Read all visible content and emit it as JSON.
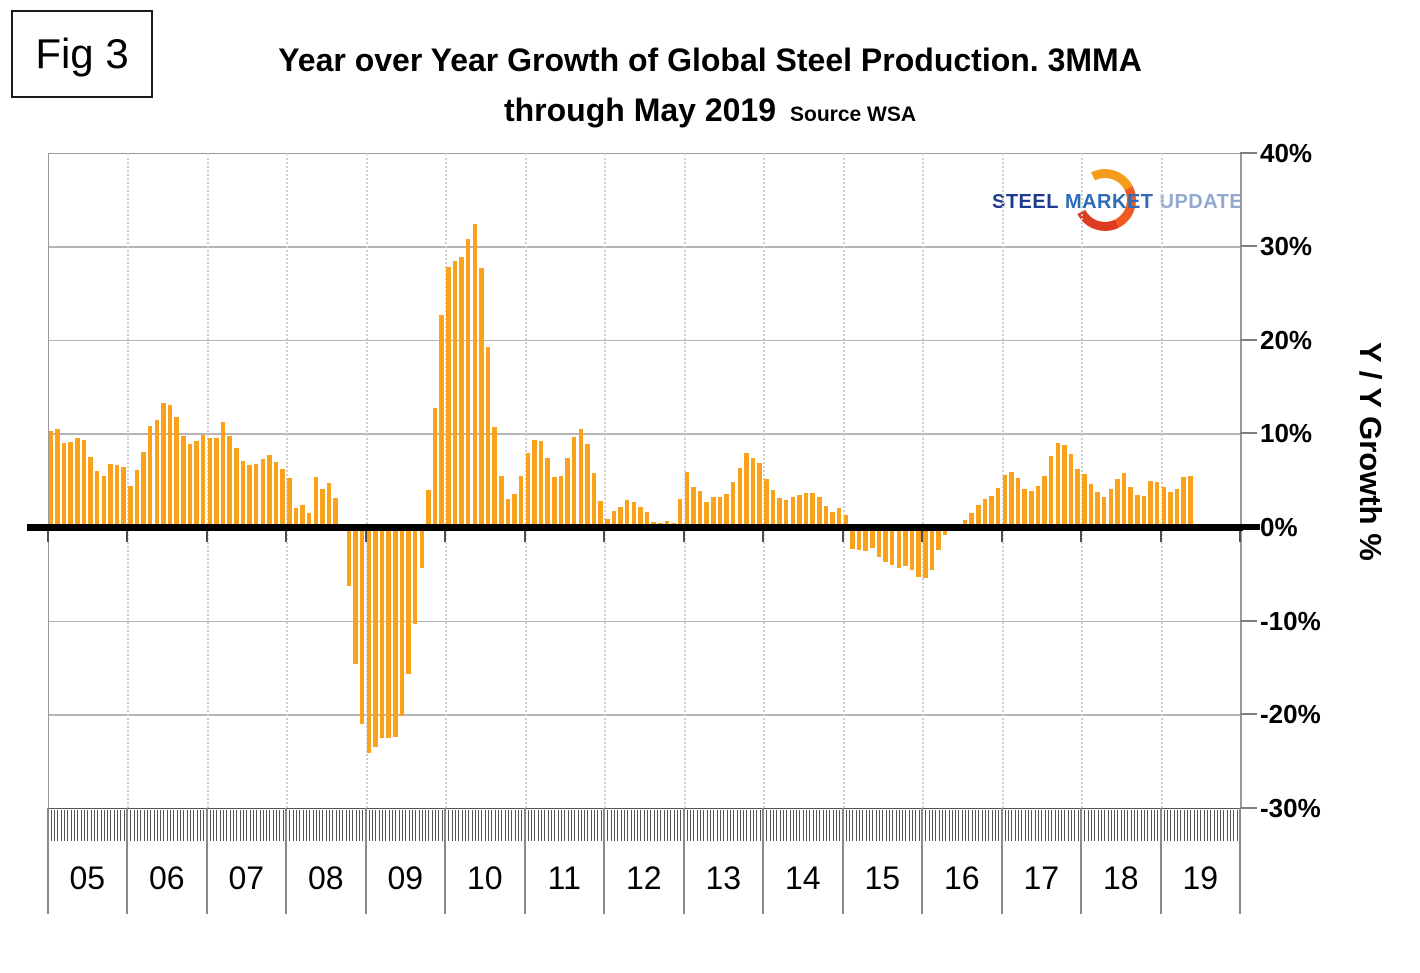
{
  "figure_label": "Fig 3",
  "title_line1": "Year over Year Growth of Global Steel Production. 3MMA",
  "title_line2": "through May 2019",
  "source_label": "Source WSA",
  "logo": {
    "word1": "STEEL",
    "word2": "MARKET",
    "word3": "UPDATE",
    "crescent_color_top": "#f69c1d",
    "crescent_color_bottom": "#dd3b22",
    "word1_color": "#1d3c8f",
    "word2_color": "#2e6cb5",
    "word3_color": "#93a9ce"
  },
  "y_axis": {
    "title": "Y / Y Growth %",
    "ticks": [
      "40%",
      "30%",
      "20%",
      "10%",
      "0%",
      "-10%",
      "-20%",
      "-30%"
    ]
  },
  "chart_data": {
    "type": "bar",
    "title": "Year over Year Growth of Global Steel Production. 3MMA through May 2019",
    "unit": "percent",
    "ylabel": "Y / Y Growth %",
    "ylim": [
      -30,
      40
    ],
    "gridline_step": 10,
    "grid": true,
    "legend": false,
    "bar_color": "#faa21b",
    "zero_line_color": "#000000",
    "x_frequency": "monthly",
    "years": [
      {
        "label": "05",
        "values": [
          10.3,
          10.5,
          9.0,
          9.1,
          9.5,
          9.3,
          7.5,
          6.0,
          5.5,
          6.7,
          6.6,
          6.4
        ]
      },
      {
        "label": "06",
        "values": [
          4.4,
          6.1,
          8.0,
          10.8,
          11.4,
          13.2,
          13.0,
          11.7,
          9.7,
          8.9,
          9.2,
          9.8
        ]
      },
      {
        "label": "07",
        "values": [
          9.5,
          9.5,
          11.2,
          9.7,
          8.4,
          7.1,
          6.6,
          6.7,
          7.3,
          7.7,
          6.9,
          6.2
        ]
      },
      {
        "label": "08",
        "values": [
          5.2,
          2.0,
          2.3,
          1.5,
          5.3,
          4.1,
          4.7,
          3.1,
          0.1,
          -6.3,
          -14.6,
          -21.1
        ]
      },
      {
        "label": "09",
        "values": [
          -24.1,
          -23.5,
          -22.5,
          -22.5,
          -22.4,
          -20.2,
          -15.7,
          -10.4,
          -4.4,
          4.0,
          12.7,
          22.6
        ]
      },
      {
        "label": "10",
        "values": [
          27.8,
          28.4,
          28.8,
          30.8,
          32.4,
          27.7,
          19.2,
          10.7,
          5.4,
          3.0,
          3.5,
          5.4
        ]
      },
      {
        "label": "11",
        "values": [
          7.9,
          9.3,
          9.2,
          7.4,
          5.3,
          5.5,
          7.4,
          9.6,
          10.5,
          8.9,
          5.8,
          2.8
        ]
      },
      {
        "label": "12",
        "values": [
          0.9,
          1.7,
          2.1,
          2.9,
          2.7,
          2.1,
          1.6,
          0.5,
          0.4,
          0.6,
          0.4,
          3.0
        ]
      },
      {
        "label": "13",
        "values": [
          5.9,
          4.3,
          3.8,
          2.7,
          3.2,
          3.2,
          3.5,
          4.8,
          6.3,
          7.9,
          7.4,
          6.8
        ]
      },
      {
        "label": "14",
        "values": [
          5.1,
          3.9,
          3.1,
          2.9,
          3.2,
          3.4,
          3.6,
          3.6,
          3.2,
          2.2,
          1.6,
          2.0
        ]
      },
      {
        "label": "15",
        "values": [
          1.3,
          -2.3,
          -2.5,
          -2.6,
          -2.2,
          -3.2,
          -3.7,
          -4.1,
          -4.4,
          -4.2,
          -4.6,
          -5.3
        ]
      },
      {
        "label": "16",
        "values": [
          -5.5,
          -4.6,
          -2.5,
          -0.9,
          -0.3,
          0.3,
          0.8,
          1.5,
          2.4,
          3.0,
          3.3,
          4.2
        ]
      },
      {
        "label": "17",
        "values": [
          5.6,
          5.9,
          5.2,
          4.1,
          3.8,
          4.4,
          5.4,
          7.6,
          9.0,
          8.8,
          7.8,
          6.2
        ]
      },
      {
        "label": "18",
        "values": [
          5.7,
          4.6,
          3.7,
          3.2,
          4.1,
          5.1,
          5.8,
          4.3,
          3.4,
          3.3,
          4.9,
          4.8
        ]
      },
      {
        "label": "19",
        "values": [
          4.3,
          3.7,
          4.1,
          5.3,
          5.4
        ]
      }
    ]
  }
}
